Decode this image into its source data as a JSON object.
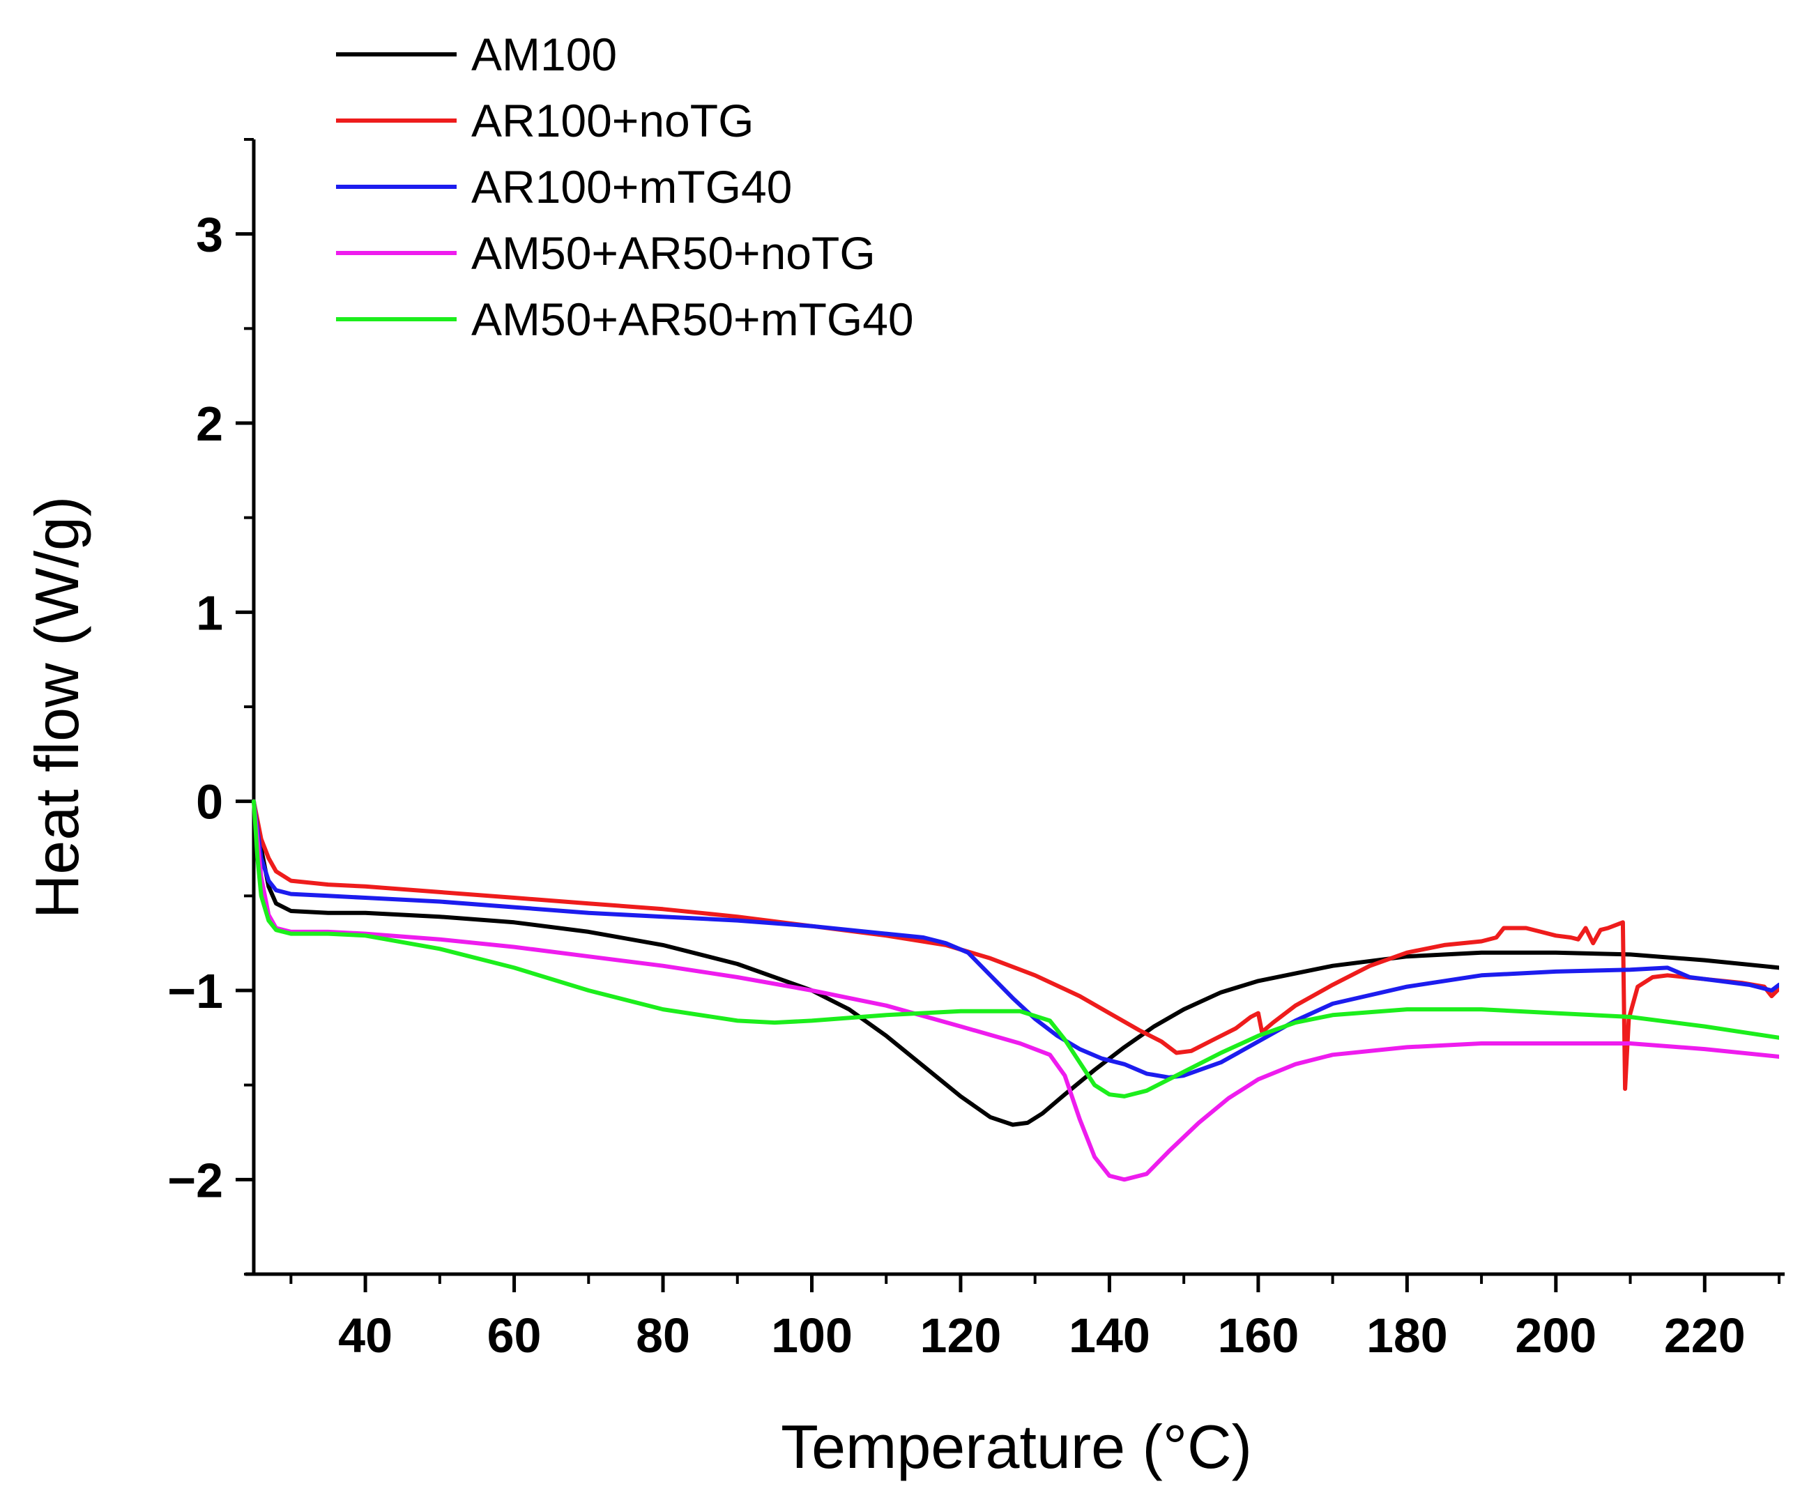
{
  "chart_data": {
    "type": "line",
    "title": "",
    "xlabel": "Temperature (°C)",
    "ylabel": "Heat flow (W/g)",
    "xlim": [
      25,
      230
    ],
    "ylim": [
      -2.5,
      3.5
    ],
    "xticks": [
      40,
      60,
      80,
      100,
      120,
      140,
      160,
      180,
      200,
      220
    ],
    "xtick_labels": [
      "40",
      "60",
      "80",
      "100",
      "120",
      "140",
      "160",
      "180",
      "200",
      "220"
    ],
    "yticks": [
      -2,
      -1,
      0,
      1,
      2,
      3
    ],
    "ytick_labels": [
      "−2",
      "−1",
      "0",
      "1",
      "2",
      "3"
    ],
    "legend_position": "top-left",
    "series": [
      {
        "name": "AM100",
        "color": "#000000",
        "points": [
          [
            25,
            0
          ],
          [
            26,
            -0.25
          ],
          [
            27,
            -0.45
          ],
          [
            28,
            -0.54
          ],
          [
            30,
            -0.58
          ],
          [
            35,
            -0.59
          ],
          [
            40,
            -0.59
          ],
          [
            50,
            -0.61
          ],
          [
            60,
            -0.64
          ],
          [
            70,
            -0.69
          ],
          [
            80,
            -0.76
          ],
          [
            90,
            -0.86
          ],
          [
            100,
            -1.0
          ],
          [
            105,
            -1.1
          ],
          [
            110,
            -1.24
          ],
          [
            115,
            -1.4
          ],
          [
            120,
            -1.56
          ],
          [
            124,
            -1.67
          ],
          [
            127,
            -1.71
          ],
          [
            129,
            -1.7
          ],
          [
            131,
            -1.65
          ],
          [
            134,
            -1.55
          ],
          [
            138,
            -1.42
          ],
          [
            142,
            -1.3
          ],
          [
            146,
            -1.19
          ],
          [
            150,
            -1.1
          ],
          [
            155,
            -1.01
          ],
          [
            160,
            -0.95
          ],
          [
            170,
            -0.87
          ],
          [
            180,
            -0.82
          ],
          [
            190,
            -0.8
          ],
          [
            200,
            -0.8
          ],
          [
            210,
            -0.81
          ],
          [
            220,
            -0.84
          ],
          [
            230,
            -0.88
          ]
        ]
      },
      {
        "name": "AR100+noTG",
        "color": "#ee1c1c",
        "points": [
          [
            25,
            0
          ],
          [
            26,
            -0.2
          ],
          [
            27,
            -0.3
          ],
          [
            28,
            -0.37
          ],
          [
            30,
            -0.42
          ],
          [
            35,
            -0.44
          ],
          [
            40,
            -0.45
          ],
          [
            50,
            -0.48
          ],
          [
            60,
            -0.51
          ],
          [
            70,
            -0.54
          ],
          [
            80,
            -0.57
          ],
          [
            90,
            -0.61
          ],
          [
            100,
            -0.66
          ],
          [
            110,
            -0.71
          ],
          [
            118,
            -0.76
          ],
          [
            124,
            -0.83
          ],
          [
            130,
            -0.92
          ],
          [
            136,
            -1.03
          ],
          [
            140,
            -1.12
          ],
          [
            144,
            -1.21
          ],
          [
            147,
            -1.27
          ],
          [
            149,
            -1.33
          ],
          [
            151,
            -1.32
          ],
          [
            154,
            -1.26
          ],
          [
            157,
            -1.2
          ],
          [
            159,
            -1.14
          ],
          [
            160,
            -1.12
          ],
          [
            160.5,
            -1.22
          ],
          [
            162,
            -1.17
          ],
          [
            165,
            -1.08
          ],
          [
            170,
            -0.97
          ],
          [
            175,
            -0.87
          ],
          [
            180,
            -0.8
          ],
          [
            185,
            -0.76
          ],
          [
            190,
            -0.74
          ],
          [
            192,
            -0.72
          ],
          [
            193,
            -0.67
          ],
          [
            196,
            -0.67
          ],
          [
            198,
            -0.69
          ],
          [
            200,
            -0.71
          ],
          [
            202,
            -0.72
          ],
          [
            203,
            -0.73
          ],
          [
            204,
            -0.67
          ],
          [
            205,
            -0.75
          ],
          [
            206,
            -0.68
          ],
          [
            207,
            -0.67
          ],
          [
            209,
            -0.64
          ],
          [
            209.3,
            -1.52
          ],
          [
            209.8,
            -1.15
          ],
          [
            211,
            -0.98
          ],
          [
            213,
            -0.93
          ],
          [
            215,
            -0.92
          ],
          [
            220,
            -0.94
          ],
          [
            225,
            -0.96
          ],
          [
            228,
            -0.98
          ],
          [
            229,
            -1.03
          ],
          [
            230,
            -0.99
          ]
        ]
      },
      {
        "name": "AR100+mTG40",
        "color": "#1c1cee",
        "points": [
          [
            25,
            0
          ],
          [
            26,
            -0.3
          ],
          [
            27,
            -0.42
          ],
          [
            28,
            -0.47
          ],
          [
            30,
            -0.49
          ],
          [
            35,
            -0.5
          ],
          [
            40,
            -0.51
          ],
          [
            50,
            -0.53
          ],
          [
            60,
            -0.56
          ],
          [
            70,
            -0.59
          ],
          [
            80,
            -0.61
          ],
          [
            90,
            -0.63
          ],
          [
            100,
            -0.66
          ],
          [
            110,
            -0.7
          ],
          [
            115,
            -0.72
          ],
          [
            118,
            -0.75
          ],
          [
            121,
            -0.8
          ],
          [
            124,
            -0.92
          ],
          [
            127,
            -1.04
          ],
          [
            130,
            -1.15
          ],
          [
            133,
            -1.24
          ],
          [
            136,
            -1.31
          ],
          [
            139,
            -1.36
          ],
          [
            142,
            -1.39
          ],
          [
            145,
            -1.44
          ],
          [
            148,
            -1.46
          ],
          [
            150,
            -1.45
          ],
          [
            155,
            -1.38
          ],
          [
            160,
            -1.27
          ],
          [
            165,
            -1.16
          ],
          [
            170,
            -1.07
          ],
          [
            180,
            -0.98
          ],
          [
            190,
            -0.92
          ],
          [
            200,
            -0.9
          ],
          [
            210,
            -0.89
          ],
          [
            215,
            -0.88
          ],
          [
            218,
            -0.93
          ],
          [
            222,
            -0.95
          ],
          [
            226,
            -0.97
          ],
          [
            229,
            -1.0
          ],
          [
            230,
            -0.97
          ]
        ]
      },
      {
        "name": "AM50+AR50+noTG",
        "color": "#ee1cee",
        "points": [
          [
            25,
            0
          ],
          [
            26,
            -0.4
          ],
          [
            27,
            -0.6
          ],
          [
            28,
            -0.67
          ],
          [
            30,
            -0.69
          ],
          [
            35,
            -0.69
          ],
          [
            40,
            -0.7
          ],
          [
            50,
            -0.73
          ],
          [
            60,
            -0.77
          ],
          [
            70,
            -0.82
          ],
          [
            80,
            -0.87
          ],
          [
            90,
            -0.93
          ],
          [
            100,
            -1.0
          ],
          [
            110,
            -1.08
          ],
          [
            120,
            -1.19
          ],
          [
            128,
            -1.28
          ],
          [
            132,
            -1.34
          ],
          [
            134,
            -1.45
          ],
          [
            136,
            -1.68
          ],
          [
            138,
            -1.88
          ],
          [
            140,
            -1.98
          ],
          [
            142,
            -2.0
          ],
          [
            145,
            -1.97
          ],
          [
            148,
            -1.85
          ],
          [
            152,
            -1.7
          ],
          [
            156,
            -1.57
          ],
          [
            160,
            -1.47
          ],
          [
            165,
            -1.39
          ],
          [
            170,
            -1.34
          ],
          [
            180,
            -1.3
          ],
          [
            190,
            -1.28
          ],
          [
            200,
            -1.28
          ],
          [
            210,
            -1.28
          ],
          [
            220,
            -1.31
          ],
          [
            230,
            -1.35
          ]
        ]
      },
      {
        "name": "AM50+AR50+mTG40",
        "color": "#1cee1c",
        "points": [
          [
            25,
            0
          ],
          [
            25.5,
            -0.3
          ],
          [
            26,
            -0.5
          ],
          [
            27,
            -0.63
          ],
          [
            28,
            -0.68
          ],
          [
            30,
            -0.7
          ],
          [
            35,
            -0.7
          ],
          [
            40,
            -0.71
          ],
          [
            50,
            -0.78
          ],
          [
            60,
            -0.88
          ],
          [
            70,
            -1.0
          ],
          [
            80,
            -1.1
          ],
          [
            90,
            -1.16
          ],
          [
            95,
            -1.17
          ],
          [
            100,
            -1.16
          ],
          [
            110,
            -1.13
          ],
          [
            120,
            -1.11
          ],
          [
            128,
            -1.11
          ],
          [
            132,
            -1.16
          ],
          [
            134,
            -1.26
          ],
          [
            136,
            -1.38
          ],
          [
            138,
            -1.5
          ],
          [
            140,
            -1.55
          ],
          [
            142,
            -1.56
          ],
          [
            145,
            -1.53
          ],
          [
            150,
            -1.43
          ],
          [
            155,
            -1.33
          ],
          [
            160,
            -1.24
          ],
          [
            165,
            -1.17
          ],
          [
            170,
            -1.13
          ],
          [
            180,
            -1.1
          ],
          [
            190,
            -1.1
          ],
          [
            200,
            -1.12
          ],
          [
            210,
            -1.14
          ],
          [
            220,
            -1.19
          ],
          [
            230,
            -1.25
          ]
        ]
      }
    ]
  }
}
